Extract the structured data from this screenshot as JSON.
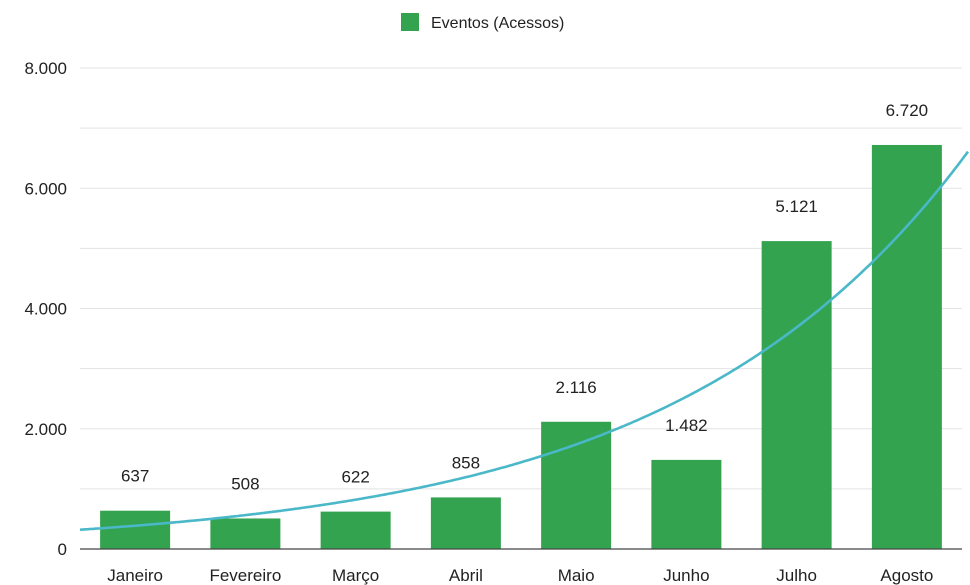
{
  "chart_data": {
    "type": "bar",
    "categories": [
      "Janeiro",
      "Fevereiro",
      "Março",
      "Abril",
      "Maio",
      "Junho",
      "Julho",
      "Agosto"
    ],
    "series": [
      {
        "name": "Eventos (Acessos)",
        "values": [
          637,
          508,
          622,
          858,
          2116,
          1482,
          5121,
          6720
        ],
        "data_labels": [
          "637",
          "508",
          "622",
          "858",
          "2.116",
          "1.482",
          "5.121",
          "6.720"
        ]
      }
    ],
    "trendline": {
      "type": "exponential",
      "color": "#4ab8c8"
    },
    "ylim": [
      0,
      8000
    ],
    "yticks": [
      0,
      2000,
      4000,
      6000,
      8000
    ],
    "ytick_labels": [
      "0",
      "2.000",
      "4.000",
      "6.000",
      "8.000"
    ],
    "grid": true,
    "legend_position": "top",
    "colors": {
      "bar": "#33a34f",
      "trendline": "#4ab8c8",
      "grid": "#e3e3e3",
      "axis": "#444444"
    }
  }
}
